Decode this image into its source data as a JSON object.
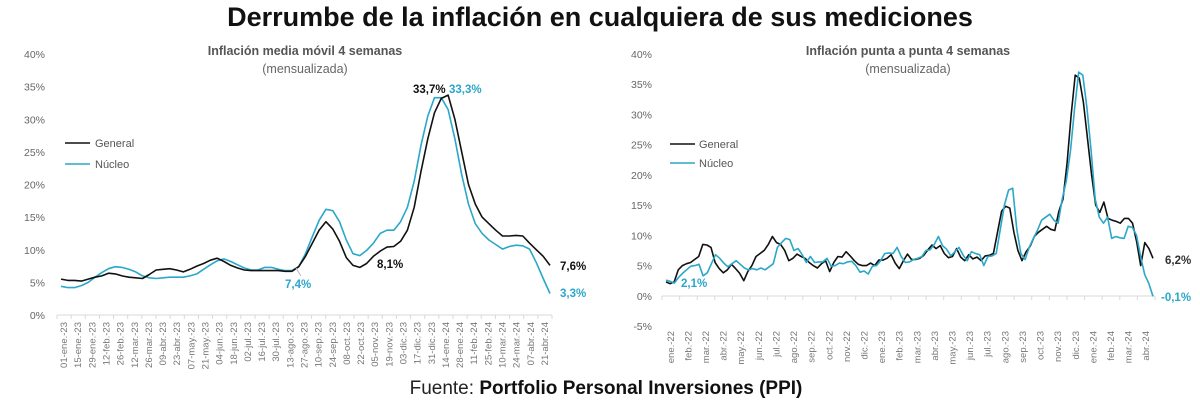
{
  "title": "Derrumbe de la inflación en cualquiera de sus mediciones",
  "footer": {
    "prefix": "Fuente: ",
    "source": "Portfolio Personal Inversiones (PPI)"
  },
  "colors": {
    "general": "#111111",
    "nucleo": "#2aa7c9"
  },
  "chart_data": [
    {
      "type": "line",
      "title": "Inflación media móvil 4 semanas",
      "subtitle": "(mensualizada)",
      "xlabel": "",
      "ylabel": "",
      "ylim": [
        0,
        40
      ],
      "yticks": [
        0,
        5,
        10,
        15,
        20,
        25,
        30,
        35,
        40
      ],
      "ytick_labels": [
        "0%",
        "5%",
        "10%",
        "15%",
        "20%",
        "25%",
        "30%",
        "35%",
        "40%"
      ],
      "grid": false,
      "legend": "left",
      "x_tick_labels": [
        "01-ene.-23",
        "15-ene.-23",
        "29-ene.-23",
        "12-feb.-23",
        "26-feb.-23",
        "12-mar.-23",
        "26-mar.-23",
        "09-abr.-23",
        "23-abr.-23",
        "07-may.-23",
        "21-may.-23",
        "04-jun.-23",
        "18-jun.-23",
        "02-jul.-23",
        "16-jul.-23",
        "30-jul.-23",
        "13-ago.-23",
        "27-ago.-23",
        "10-sep.-23",
        "24-sep.-23",
        "08-oct.-23",
        "22-oct.-23",
        "05-nov.-23",
        "19-nov.-23",
        "03-dic.-23",
        "17-dic.-23",
        "31-dic.-23",
        "14-ene.-24",
        "28-ene.-24",
        "11-feb.-24",
        "25-feb.-24",
        "10-mar.-24",
        "24-mar.-24",
        "07-abr.-24",
        "21-abr.-24"
      ],
      "series": [
        {
          "name": "General",
          "color_key": "general",
          "values": [
            5.5,
            5.3,
            5.3,
            5.2,
            5.5,
            5.8,
            6.0,
            6.4,
            6.3,
            6.0,
            5.8,
            5.7,
            5.6,
            6.2,
            6.9,
            7.0,
            7.1,
            6.9,
            6.6,
            7.0,
            7.5,
            7.9,
            8.4,
            8.7,
            8.2,
            7.6,
            7.2,
            6.9,
            6.8,
            6.8,
            6.8,
            6.8,
            6.8,
            6.7,
            6.7,
            7.4,
            9.0,
            11.0,
            13.0,
            14.3,
            13.2,
            11.3,
            8.8,
            7.6,
            7.3,
            7.9,
            9.0,
            9.8,
            10.4,
            10.5,
            11.3,
            13.0,
            16.5,
            22.0,
            27.0,
            31.0,
            33.2,
            33.7,
            30.0,
            25.0,
            20.0,
            17.0,
            15.0,
            14.0,
            13.0,
            12.1,
            12.1,
            12.2,
            12.1,
            11.0,
            10.0,
            9.0,
            7.6
          ]
        },
        {
          "name": "Núcleo",
          "color_key": "nucleo",
          "values": [
            4.4,
            4.2,
            4.2,
            4.5,
            5.0,
            5.8,
            6.5,
            7.1,
            7.4,
            7.3,
            7.0,
            6.6,
            6.0,
            5.7,
            5.6,
            5.7,
            5.8,
            5.8,
            5.8,
            6.0,
            6.3,
            7.0,
            7.7,
            8.3,
            8.6,
            8.2,
            7.7,
            7.2,
            6.9,
            6.9,
            7.3,
            7.3,
            7.0,
            6.8,
            6.8,
            7.4,
            9.4,
            12.0,
            14.5,
            16.2,
            16.0,
            14.3,
            11.5,
            9.4,
            9.1,
            9.9,
            11.0,
            12.5,
            13.0,
            13.0,
            14.3,
            16.5,
            20.5,
            26.0,
            30.5,
            33.3,
            33.3,
            31.5,
            27.0,
            21.5,
            17.0,
            14.0,
            12.5,
            11.5,
            10.8,
            10.1,
            10.5,
            10.7,
            10.6,
            10.1,
            8.0,
            5.6,
            3.3
          ]
        }
      ],
      "annotations": [
        {
          "text": "33,7%",
          "series": "General"
        },
        {
          "text": "33,3%",
          "series": "Núcleo"
        },
        {
          "text": "7,4%",
          "series": "Núcleo"
        },
        {
          "text": "8,1%",
          "series": "General"
        },
        {
          "text": "7,6%",
          "series": "General"
        },
        {
          "text": "3,3%",
          "series": "Núcleo"
        }
      ]
    },
    {
      "type": "line",
      "title": "Inflación punta a punta 4 semanas",
      "subtitle": "(mensualizada)",
      "xlabel": "",
      "ylabel": "",
      "ylim": [
        -5,
        40
      ],
      "yticks": [
        -5,
        0,
        5,
        10,
        15,
        20,
        25,
        30,
        35,
        40
      ],
      "ytick_labels": [
        "-5%",
        "0%",
        "5%",
        "10%",
        "15%",
        "20%",
        "25%",
        "30%",
        "35%",
        "40%"
      ],
      "grid": false,
      "legend": "left",
      "x_tick_labels": [
        "ene.-22",
        "feb.-22",
        "mar.-22",
        "abr.-22",
        "may.-22",
        "jun.-22",
        "jul.-22",
        "ago.-22",
        "sep.-22",
        "oct.-22",
        "nov.-22",
        "dic.-22",
        "ene.-23",
        "feb.-23",
        "mar.-23",
        "abr.-23",
        "may.-23",
        "jun.-23",
        "jul.-23",
        "ago.-23",
        "sep.-23",
        "oct.-23",
        "nov.-23",
        "dic.-23",
        "ene.-24",
        "feb.-24",
        "mar.-24",
        "abr.-24"
      ],
      "series": [
        {
          "name": "General",
          "color_key": "general",
          "values": [
            2.3,
            2.0,
            2.3,
            4.3,
            5.0,
            5.3,
            5.5,
            6.0,
            6.5,
            8.5,
            8.4,
            8.0,
            5.5,
            4.5,
            3.8,
            4.3,
            5.2,
            4.5,
            3.7,
            2.5,
            4.0,
            5.0,
            6.5,
            7.0,
            7.5,
            8.5,
            9.8,
            8.8,
            8.5,
            7.5,
            5.8,
            6.2,
            6.9,
            6.5,
            6.2,
            5.5,
            5.0,
            4.6,
            5.3,
            5.8,
            4.0,
            5.5,
            6.5,
            6.4,
            7.3,
            6.6,
            5.8,
            5.2,
            5.0,
            5.0,
            5.4,
            5.0,
            5.9,
            5.9,
            6.2,
            6.8,
            5.4,
            4.5,
            5.8,
            6.9,
            6.0,
            6.0,
            6.2,
            6.7,
            7.6,
            8.4,
            7.8,
            8.3,
            7.0,
            6.3,
            6.5,
            7.8,
            6.4,
            5.8,
            6.8,
            6.1,
            6.4,
            5.8,
            6.6,
            6.7,
            7.0,
            10.5,
            14.0,
            14.8,
            14.5,
            10.5,
            7.5,
            5.8,
            7.3,
            8.2,
            9.8,
            10.5,
            11.0,
            11.5,
            11.0,
            10.8,
            14.0,
            16.0,
            22.0,
            30.0,
            36.5,
            36.0,
            32.0,
            26.0,
            20.0,
            15.0,
            13.8,
            15.5,
            12.8,
            12.5,
            12.3,
            12.0,
            12.8,
            12.8,
            12.0,
            9.0,
            5.0,
            8.8,
            7.8,
            6.2
          ]
        },
        {
          "name": "Núcleo",
          "color_key": "nucleo",
          "values": [
            2.6,
            2.4,
            2.1,
            3.0,
            3.7,
            4.3,
            4.9,
            5.0,
            5.2,
            3.3,
            3.8,
            5.3,
            6.8,
            6.2,
            5.4,
            4.8,
            5.3,
            5.8,
            5.2,
            4.6,
            4.3,
            4.5,
            4.3,
            4.6,
            4.3,
            4.8,
            5.3,
            8.0,
            8.8,
            9.5,
            9.3,
            7.5,
            7.8,
            6.8,
            5.5,
            6.5,
            5.5,
            5.6,
            5.6,
            6.2,
            4.9,
            5.0,
            5.4,
            5.3,
            5.6,
            5.7,
            5.0,
            3.9,
            4.1,
            3.6,
            4.9,
            5.0,
            5.8,
            7.0,
            7.1,
            7.0,
            8.0,
            6.5,
            5.5,
            5.6,
            6.0,
            6.2,
            6.5,
            7.5,
            7.6,
            8.5,
            9.8,
            8.3,
            7.7,
            6.6,
            7.3,
            8.0,
            6.7,
            5.8,
            7.3,
            7.0,
            6.8,
            5.0,
            6.5,
            6.6,
            7.0,
            11.0,
            15.0,
            17.5,
            17.8,
            11.0,
            7.0,
            6.0,
            8.0,
            9.5,
            10.8,
            12.5,
            13.0,
            13.5,
            12.5,
            12.0,
            16.0,
            19.0,
            24.0,
            31.0,
            37.0,
            36.5,
            31.0,
            24.0,
            16.0,
            13.0,
            12.0,
            13.0,
            9.5,
            9.8,
            9.6,
            9.5,
            11.5,
            11.3,
            10.0,
            6.5,
            3.5,
            2.0,
            -0.1
          ]
        }
      ],
      "annotations": [
        {
          "text": "2,1%",
          "series": "Núcleo"
        },
        {
          "text": "6,2%",
          "series": "General"
        },
        {
          "text": "-0,1%",
          "series": "Núcleo"
        }
      ]
    }
  ]
}
